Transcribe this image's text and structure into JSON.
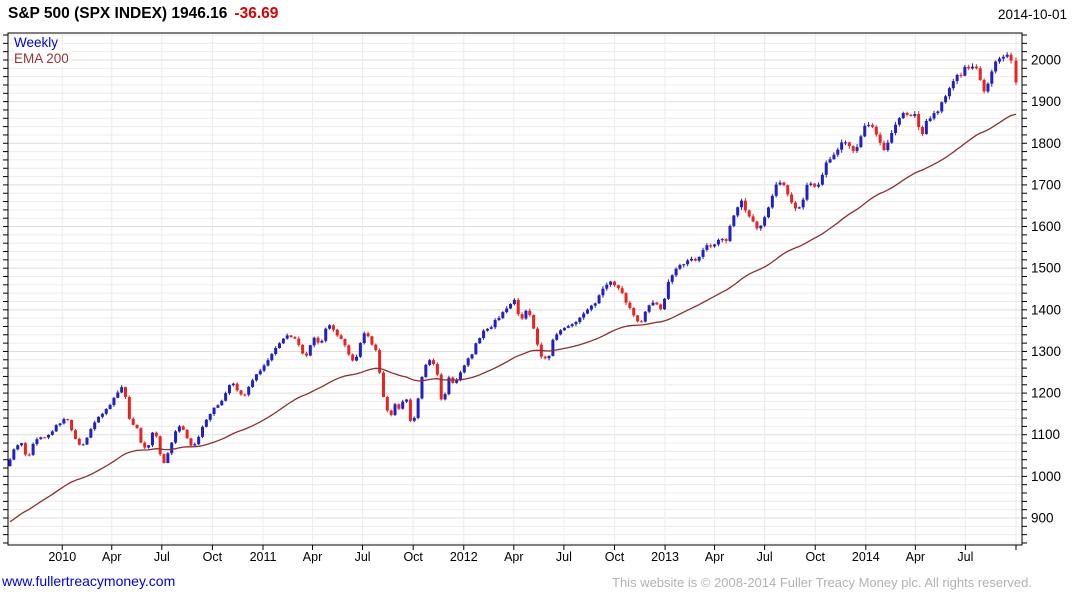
{
  "header": {
    "title_main": "S&P 500 (SPX INDEX) 1946.16",
    "change": "-36.69",
    "date": "2014-10-01"
  },
  "legend": {
    "weekly": "Weekly",
    "ema": "EMA 200"
  },
  "footer": {
    "link": "www.fullertreacymoney.com",
    "copyright": "This website is © 2008-2014 Fuller Treacy Money plc. All rights reserved."
  },
  "colors": {
    "up_candle": "#2020c4",
    "down_candle": "#e82420",
    "ema_line": "#8b3030",
    "grid_minor": "#ececec",
    "grid_major": "#dedede",
    "axis": "#000000",
    "change_red": "#dd0000",
    "legend_weekly_blue": "#0000cc",
    "legend_ema_red": "#993333",
    "link_blue": "#0000dd",
    "copyright_gray": "#b2b2b2"
  },
  "chart_data": {
    "type": "candlestick",
    "instrument": "S&P 500 (SPX INDEX)",
    "interval": "Weekly",
    "overlay": "EMA 200",
    "last_price": 1946.16,
    "change": -36.69,
    "as_of": "2014-10-01",
    "ylim": [
      835,
      2065
    ],
    "y_minor_step": 20,
    "y_tick_labels": [
      "900",
      "1000",
      "1100",
      "1200",
      "1300",
      "1400",
      "1500",
      "1600",
      "1700",
      "1800",
      "1900",
      "2000"
    ],
    "x_axis": {
      "start": "2009-09-28",
      "end": "2014-10-01",
      "quarter_labels": [
        "2010",
        "Apr",
        "Jul",
        "Oct",
        "2011",
        "Apr",
        "Jul",
        "Oct",
        "2012",
        "Apr",
        "Jul",
        "Oct",
        "2013",
        "Apr",
        "Jul",
        "Oct",
        "2014",
        "Apr",
        "Jul"
      ]
    },
    "weekly_close_anchors": [
      [
        "2009-09-28",
        1044
      ],
      [
        "2009-10-09",
        1071
      ],
      [
        "2009-10-16",
        1088
      ],
      [
        "2009-10-30",
        1036
      ],
      [
        "2009-11-13",
        1093
      ],
      [
        "2009-11-27",
        1091
      ],
      [
        "2009-12-11",
        1106
      ],
      [
        "2010-01-08",
        1145
      ],
      [
        "2010-01-22",
        1092
      ],
      [
        "2010-02-05",
        1066
      ],
      [
        "2010-02-19",
        1109
      ],
      [
        "2010-03-12",
        1150
      ],
      [
        "2010-03-26",
        1166
      ],
      [
        "2010-04-09",
        1194
      ],
      [
        "2010-04-23",
        1217
      ],
      [
        "2010-05-07",
        1111
      ],
      [
        "2010-05-14",
        1136
      ],
      [
        "2010-05-21",
        1088
      ],
      [
        "2010-06-04",
        1065
      ],
      [
        "2010-06-18",
        1118
      ],
      [
        "2010-07-02",
        1023
      ],
      [
        "2010-07-16",
        1065
      ],
      [
        "2010-07-23",
        1103
      ],
      [
        "2010-08-06",
        1122
      ],
      [
        "2010-08-27",
        1065
      ],
      [
        "2010-09-10",
        1110
      ],
      [
        "2010-09-24",
        1149
      ],
      [
        "2010-10-15",
        1176
      ],
      [
        "2010-11-05",
        1226
      ],
      [
        "2010-11-19",
        1200
      ],
      [
        "2010-11-26",
        1189
      ],
      [
        "2010-12-17",
        1244
      ],
      [
        "2010-12-31",
        1258
      ],
      [
        "2011-01-14",
        1293
      ],
      [
        "2011-02-18",
        1343
      ],
      [
        "2011-03-04",
        1321
      ],
      [
        "2011-03-18",
        1279
      ],
      [
        "2011-04-01",
        1332
      ],
      [
        "2011-04-15",
        1320
      ],
      [
        "2011-04-29",
        1364
      ],
      [
        "2011-05-20",
        1333
      ],
      [
        "2011-06-17",
        1272
      ],
      [
        "2011-07-01",
        1340
      ],
      [
        "2011-07-08",
        1344
      ],
      [
        "2011-07-29",
        1292
      ],
      [
        "2011-08-05",
        1199
      ],
      [
        "2011-08-12",
        1179
      ],
      [
        "2011-08-19",
        1124
      ],
      [
        "2011-08-26",
        1177
      ],
      [
        "2011-09-09",
        1154
      ],
      [
        "2011-09-16",
        1216
      ],
      [
        "2011-09-23",
        1136
      ],
      [
        "2011-09-30",
        1131
      ],
      [
        "2011-10-07",
        1155
      ],
      [
        "2011-10-14",
        1224
      ],
      [
        "2011-10-28",
        1285
      ],
      [
        "2011-11-11",
        1264
      ],
      [
        "2011-11-25",
        1159
      ],
      [
        "2011-12-02",
        1244
      ],
      [
        "2011-12-16",
        1220
      ],
      [
        "2011-12-30",
        1258
      ],
      [
        "2012-01-13",
        1289
      ],
      [
        "2012-02-03",
        1345
      ],
      [
        "2012-02-24",
        1366
      ],
      [
        "2012-03-16",
        1404
      ],
      [
        "2012-04-02",
        1419
      ],
      [
        "2012-04-13",
        1370
      ],
      [
        "2012-04-27",
        1403
      ],
      [
        "2012-05-18",
        1295
      ],
      [
        "2012-06-01",
        1278
      ],
      [
        "2012-06-15",
        1343
      ],
      [
        "2012-06-22",
        1335
      ],
      [
        "2012-06-29",
        1362
      ],
      [
        "2012-07-13",
        1357
      ],
      [
        "2012-08-03",
        1391
      ],
      [
        "2012-08-24",
        1411
      ],
      [
        "2012-09-14",
        1466
      ],
      [
        "2012-10-05",
        1461
      ],
      [
        "2012-10-26",
        1412
      ],
      [
        "2012-11-16",
        1360
      ],
      [
        "2012-11-30",
        1416
      ],
      [
        "2012-12-14",
        1413
      ],
      [
        "2012-12-28",
        1402
      ],
      [
        "2013-01-04",
        1466
      ],
      [
        "2013-01-25",
        1503
      ],
      [
        "2013-02-15",
        1520
      ],
      [
        "2013-03-01",
        1518
      ],
      [
        "2013-03-15",
        1561
      ],
      [
        "2013-04-05",
        1553
      ],
      [
        "2013-04-12",
        1589
      ],
      [
        "2013-04-19",
        1555
      ],
      [
        "2013-05-03",
        1614
      ],
      [
        "2013-05-17",
        1667
      ],
      [
        "2013-05-31",
        1631
      ],
      [
        "2013-06-21",
        1592
      ],
      [
        "2013-07-05",
        1632
      ],
      [
        "2013-07-19",
        1692
      ],
      [
        "2013-08-02",
        1710
      ],
      [
        "2013-08-30",
        1633
      ],
      [
        "2013-09-20",
        1710
      ],
      [
        "2013-10-04",
        1691
      ],
      [
        "2013-10-11",
        1703
      ],
      [
        "2013-10-18",
        1745
      ],
      [
        "2013-11-01",
        1762
      ],
      [
        "2013-11-15",
        1798
      ],
      [
        "2013-11-29",
        1806
      ],
      [
        "2013-12-13",
        1775
      ],
      [
        "2013-12-31",
        1848
      ],
      [
        "2014-01-17",
        1839
      ],
      [
        "2014-01-31",
        1783
      ],
      [
        "2014-02-07",
        1797
      ],
      [
        "2014-02-21",
        1836
      ],
      [
        "2014-03-07",
        1878
      ],
      [
        "2014-03-21",
        1866
      ],
      [
        "2014-04-04",
        1865
      ],
      [
        "2014-04-11",
        1816
      ],
      [
        "2014-04-25",
        1863
      ],
      [
        "2014-05-09",
        1878
      ],
      [
        "2014-05-23",
        1901
      ],
      [
        "2014-06-06",
        1949
      ],
      [
        "2014-06-20",
        1963
      ],
      [
        "2014-07-03",
        1985
      ],
      [
        "2014-07-18",
        1978
      ],
      [
        "2014-07-25",
        1978
      ],
      [
        "2014-08-01",
        1925
      ],
      [
        "2014-08-08",
        1932
      ],
      [
        "2014-08-22",
        1988
      ],
      [
        "2014-09-05",
        2008
      ],
      [
        "2014-09-19",
        2010
      ],
      [
        "2014-09-26",
        1983
      ],
      [
        "2014-10-01",
        1946.16
      ]
    ],
    "special_week_lows": [
      [
        "2010-05-07",
        1066
      ],
      [
        "2011-08-12",
        1101
      ],
      [
        "2011-10-07",
        1075
      ]
    ],
    "ema_start_value": 885,
    "ema_period_weeks": 52
  }
}
